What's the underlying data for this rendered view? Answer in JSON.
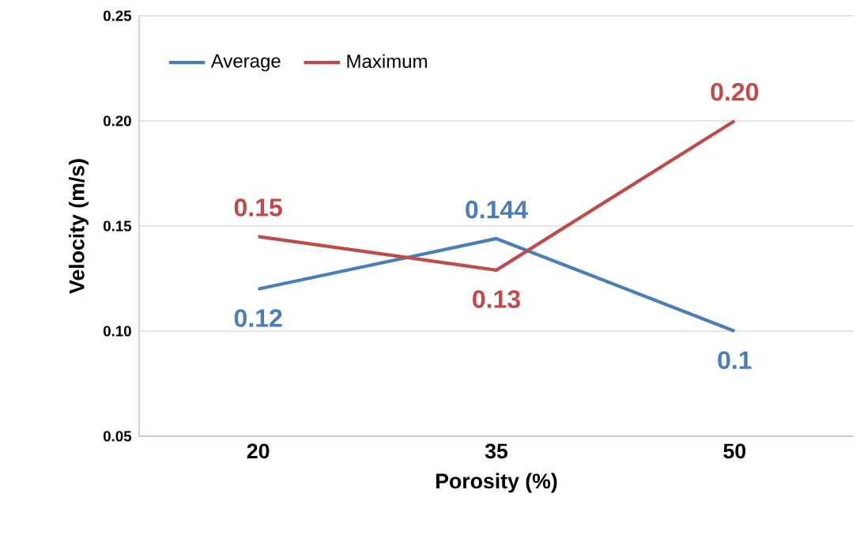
{
  "chart_data": {
    "type": "line",
    "xlabel": "Porosity (%)",
    "ylabel": "Velocity (m/s)",
    "categories": [
      "20",
      "35",
      "50"
    ],
    "series": [
      {
        "name": "Average",
        "color": "#4a7ebb",
        "values": [
          0.12,
          0.144,
          0.1
        ],
        "value_labels": [
          "0.12",
          "0.144",
          "0.1"
        ]
      },
      {
        "name": "Maximum",
        "color": "#be4b48",
        "values": [
          0.145,
          0.129,
          0.2
        ],
        "value_labels": [
          "0.15",
          "0.13",
          "0.20"
        ]
      }
    ],
    "ylim": [
      0.05,
      0.25
    ],
    "yticks": [
      {
        "value": 0.05,
        "label": "0.05"
      },
      {
        "value": 0.1,
        "label": "0.10"
      },
      {
        "value": 0.15,
        "label": "0.15"
      },
      {
        "value": 0.2,
        "label": "0.20"
      },
      {
        "value": 0.25,
        "label": "0.25"
      }
    ],
    "grid": "y",
    "legend": "top left",
    "marker": "none",
    "line_style": "solid"
  }
}
